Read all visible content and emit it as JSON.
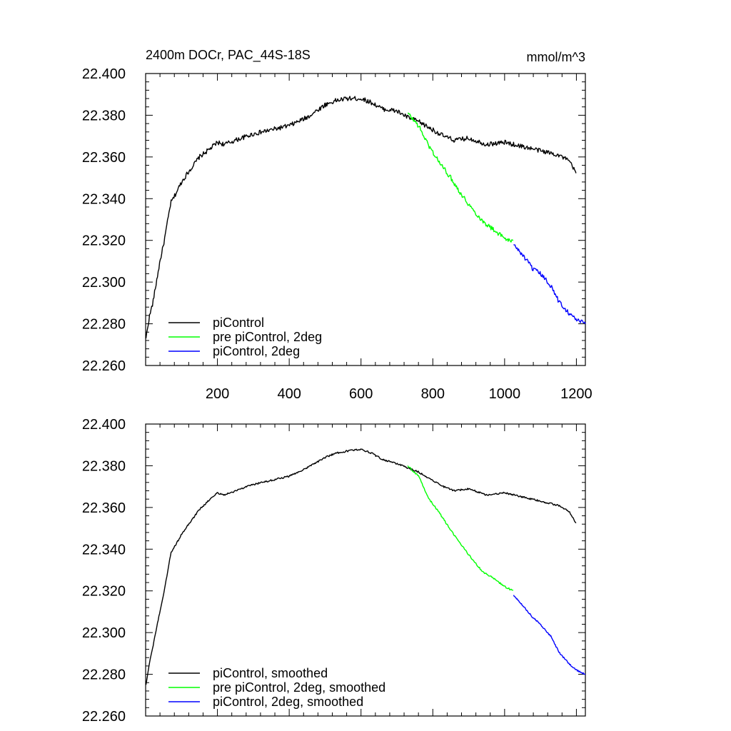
{
  "figure": {
    "title_left": "2400m DOCr, PAC_44S-18S",
    "title_right": "mmol/m^3"
  },
  "chart_data": [
    {
      "type": "line",
      "xlim": [
        0,
        1225
      ],
      "ylim": [
        22.26,
        22.4
      ],
      "xticks": [
        200,
        400,
        600,
        800,
        1000,
        1200
      ],
      "xtick_labels": [
        "200",
        "400",
        "600",
        "800",
        "1000",
        "1200"
      ],
      "yticks": [
        22.26,
        22.28,
        22.3,
        22.32,
        22.34,
        22.36,
        22.38,
        22.4
      ],
      "ytick_labels": [
        "22.260",
        "22.280",
        "22.300",
        "22.320",
        "22.340",
        "22.360",
        "22.380",
        "22.400"
      ],
      "legend_position": "bottom-left",
      "grid": false,
      "noise": 0.0011,
      "series": [
        {
          "name": "piControl",
          "color": "#000000",
          "x": [
            1,
            10,
            20,
            30,
            40,
            50,
            60,
            70,
            80,
            100,
            120,
            150,
            180,
            200,
            220,
            250,
            300,
            350,
            400,
            450,
            500,
            530,
            560,
            600,
            630,
            660,
            700,
            730,
            760,
            800,
            830,
            860,
            900,
            950,
            1000,
            1050,
            1100,
            1150,
            1180,
            1200
          ],
          "y": [
            22.273,
            22.283,
            22.29,
            22.3,
            22.31,
            22.318,
            22.328,
            22.338,
            22.341,
            22.348,
            22.353,
            22.36,
            22.364,
            22.367,
            22.366,
            22.368,
            22.371,
            22.373,
            22.375,
            22.379,
            22.385,
            22.387,
            22.388,
            22.388,
            22.386,
            22.383,
            22.382,
            22.379,
            22.377,
            22.373,
            22.37,
            22.368,
            22.369,
            22.366,
            22.367,
            22.365,
            22.363,
            22.361,
            22.358,
            22.352
          ]
        },
        {
          "name": "pre piControl, 2deg",
          "color": "#00ff00",
          "x": [
            730,
            760,
            790,
            820,
            850,
            880,
            910,
            940,
            970,
            1000,
            1025
          ],
          "y": [
            22.381,
            22.375,
            22.365,
            22.357,
            22.35,
            22.342,
            22.335,
            22.329,
            22.325,
            22.321,
            22.319
          ]
        },
        {
          "name": "piControl, 2deg",
          "color": "#0000ff",
          "x": [
            1025,
            1050,
            1080,
            1100,
            1130,
            1150,
            1180,
            1200,
            1225
          ],
          "y": [
            22.318,
            22.313,
            22.306,
            22.304,
            22.298,
            22.291,
            22.285,
            22.282,
            22.28
          ]
        }
      ]
    },
    {
      "type": "line",
      "xlim": [
        0,
        1225
      ],
      "ylim": [
        22.26,
        22.4
      ],
      "xticks": [
        200,
        400,
        600,
        800,
        1000,
        1200
      ],
      "xtick_labels": [],
      "yticks": [
        22.26,
        22.28,
        22.3,
        22.32,
        22.34,
        22.36,
        22.38,
        22.4
      ],
      "ytick_labels": [
        "22.260",
        "22.280",
        "22.300",
        "22.320",
        "22.340",
        "22.360",
        "22.380",
        "22.400"
      ],
      "legend_position": "bottom-left",
      "grid": false,
      "noise": 0.0004,
      "series": [
        {
          "name": "piControl, smoothed",
          "color": "#000000",
          "x": [
            1,
            10,
            20,
            30,
            40,
            50,
            60,
            70,
            80,
            100,
            120,
            150,
            180,
            200,
            220,
            250,
            300,
            350,
            400,
            450,
            500,
            530,
            560,
            600,
            630,
            660,
            700,
            730,
            760,
            800,
            830,
            860,
            900,
            950,
            1000,
            1050,
            1100,
            1150,
            1180,
            1200
          ],
          "y": [
            22.275,
            22.285,
            22.293,
            22.302,
            22.31,
            22.318,
            22.328,
            22.338,
            22.341,
            22.347,
            22.352,
            22.359,
            22.364,
            22.367,
            22.366,
            22.368,
            22.371,
            22.373,
            22.375,
            22.379,
            22.384,
            22.386,
            22.387,
            22.388,
            22.386,
            22.383,
            22.381,
            22.379,
            22.377,
            22.373,
            22.37,
            22.368,
            22.369,
            22.366,
            22.367,
            22.365,
            22.363,
            22.361,
            22.358,
            22.352
          ]
        },
        {
          "name": "pre piControl, 2deg, smoothed",
          "color": "#00ff00",
          "x": [
            730,
            760,
            790,
            820,
            850,
            880,
            910,
            940,
            970,
            1000,
            1025
          ],
          "y": [
            22.38,
            22.375,
            22.364,
            22.357,
            22.349,
            22.342,
            22.335,
            22.329,
            22.326,
            22.322,
            22.32
          ]
        },
        {
          "name": "piControl, 2deg, smoothed",
          "color": "#0000ff",
          "x": [
            1025,
            1050,
            1080,
            1100,
            1130,
            1150,
            1180,
            1200,
            1225
          ],
          "y": [
            22.318,
            22.313,
            22.307,
            22.304,
            22.298,
            22.291,
            22.285,
            22.282,
            22.28
          ]
        }
      ]
    }
  ]
}
